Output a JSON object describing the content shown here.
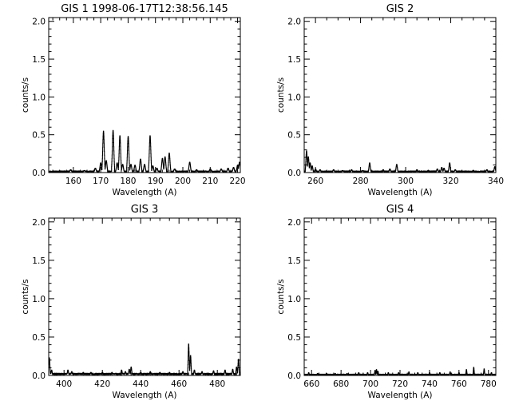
{
  "figure": {
    "colors": {
      "background": "#ffffff",
      "ink": "#000000"
    }
  },
  "chart_data": [
    {
      "type": "line",
      "title": "GIS 1 1998-06-17T12:38:56.145",
      "xlabel": "Wavelength (A)",
      "ylabel": "counts/s",
      "xlim": [
        151,
        221
      ],
      "ylim": [
        0,
        2.05
      ],
      "xticks": [
        160,
        170,
        180,
        190,
        200,
        210,
        220
      ],
      "yticks": [
        0.0,
        0.5,
        1.0,
        1.5,
        2.0
      ],
      "ytick_labels": [
        "0.0",
        "0.5",
        "1.0",
        "1.5",
        "2.0"
      ],
      "grid": false,
      "series": [
        {
          "style": "histogram",
          "baseline": 0.015,
          "lines": [
            [
              159,
              0.03
            ],
            [
              164,
              0.02
            ],
            [
              168,
              0.05
            ],
            [
              170,
              0.12
            ],
            [
              171,
              0.54
            ],
            [
              172,
              0.15
            ],
            [
              174.5,
              0.55
            ],
            [
              176,
              0.12
            ],
            [
              177,
              0.48
            ],
            [
              178,
              0.1
            ],
            [
              180,
              0.47
            ],
            [
              181,
              0.1
            ],
            [
              182.5,
              0.09
            ],
            [
              184.5,
              0.17
            ],
            [
              186,
              0.1
            ],
            [
              188,
              0.48
            ],
            [
              189,
              0.08
            ],
            [
              190.5,
              0.05
            ],
            [
              192.5,
              0.18
            ],
            [
              193.5,
              0.2
            ],
            [
              195,
              0.25
            ],
            [
              197,
              0.04
            ],
            [
              202.5,
              0.13
            ],
            [
              205,
              0.03
            ],
            [
              210,
              0.04
            ],
            [
              214,
              0.04
            ],
            [
              216.5,
              0.05
            ],
            [
              218.5,
              0.06
            ],
            [
              220,
              0.09
            ],
            [
              220.7,
              0.13
            ]
          ]
        }
      ]
    },
    {
      "type": "line",
      "title": "GIS 2",
      "xlabel": "Wavelength (A)",
      "ylabel": "counts/s",
      "xlim": [
        255,
        340
      ],
      "ylim": [
        0,
        2.05
      ],
      "xticks": [
        260,
        280,
        300,
        320,
        340
      ],
      "yticks": [
        0.0,
        0.5,
        1.0,
        1.5,
        2.0
      ],
      "ytick_labels": [
        "0.0",
        "0.5",
        "1.0",
        "1.5",
        "2.0"
      ],
      "grid": false,
      "series": [
        {
          "style": "histogram",
          "baseline": 0.015,
          "lines": [
            [
              256,
              0.28
            ],
            [
              256.8,
              0.2
            ],
            [
              257.6,
              0.12
            ],
            [
              258.5,
              0.08
            ],
            [
              260,
              0.04
            ],
            [
              262,
              0.03
            ],
            [
              268,
              0.03
            ],
            [
              272,
              0.02
            ],
            [
              276,
              0.03
            ],
            [
              281,
              0.02
            ],
            [
              284,
              0.12
            ],
            [
              290,
              0.03
            ],
            [
              293,
              0.04
            ],
            [
              296,
              0.1
            ],
            [
              305,
              0.03
            ],
            [
              310,
              0.02
            ],
            [
              314,
              0.04
            ],
            [
              316,
              0.06
            ],
            [
              317,
              0.05
            ],
            [
              319.5,
              0.12
            ],
            [
              322,
              0.03
            ],
            [
              330,
              0.02
            ],
            [
              336,
              0.03
            ],
            [
              339.5,
              0.07
            ]
          ]
        }
      ]
    },
    {
      "type": "line",
      "title": "GIS 3",
      "xlabel": "Wavelength (A)",
      "ylabel": "counts/s",
      "xlim": [
        392,
        492
      ],
      "ylim": [
        0,
        2.05
      ],
      "xticks": [
        400,
        420,
        440,
        460,
        480
      ],
      "yticks": [
        0.0,
        0.5,
        1.0,
        1.5,
        2.0
      ],
      "ytick_labels": [
        "0.0",
        "0.5",
        "1.0",
        "1.5",
        "2.0"
      ],
      "grid": false,
      "series": [
        {
          "style": "histogram",
          "baseline": 0.02,
          "lines": [
            [
              392.3,
              0.22
            ],
            [
              393.5,
              0.06
            ],
            [
              402,
              0.06
            ],
            [
              404,
              0.04
            ],
            [
              410,
              0.03
            ],
            [
              414,
              0.03
            ],
            [
              420,
              0.03
            ],
            [
              425,
              0.03
            ],
            [
              430,
              0.06
            ],
            [
              432,
              0.04
            ],
            [
              434,
              0.07
            ],
            [
              435,
              0.1
            ],
            [
              440,
              0.03
            ],
            [
              445,
              0.04
            ],
            [
              450,
              0.03
            ],
            [
              455,
              0.03
            ],
            [
              462,
              0.04
            ],
            [
              465,
              0.4
            ],
            [
              466,
              0.25
            ],
            [
              468,
              0.06
            ],
            [
              472,
              0.04
            ],
            [
              478,
              0.05
            ],
            [
              484,
              0.06
            ],
            [
              488,
              0.07
            ],
            [
              490,
              0.1
            ],
            [
              491,
              0.2
            ]
          ]
        }
      ]
    },
    {
      "type": "line",
      "title": "GIS 4",
      "xlabel": "Wavelength (A)",
      "ylabel": "counts/s",
      "xlim": [
        655,
        785
      ],
      "ylim": [
        0,
        2.05
      ],
      "xticks": [
        660,
        680,
        700,
        720,
        740,
        760,
        780
      ],
      "yticks": [
        0.0,
        0.5,
        1.0,
        1.5,
        2.0
      ],
      "ytick_labels": [
        "0.0",
        "0.5",
        "1.0",
        "1.5",
        "2.0"
      ],
      "grid": false,
      "series": [
        {
          "style": "histogram",
          "baseline": 0.012,
          "lines": [
            [
              658,
              0.03
            ],
            [
              664,
              0.02
            ],
            [
              670,
              0.02
            ],
            [
              676,
              0.02
            ],
            [
              684,
              0.02
            ],
            [
              692,
              0.03
            ],
            [
              698,
              0.03
            ],
            [
              703,
              0.06
            ],
            [
              704,
              0.07
            ],
            [
              705,
              0.05
            ],
            [
              712,
              0.03
            ],
            [
              719,
              0.03
            ],
            [
              726,
              0.04
            ],
            [
              732,
              0.03
            ],
            [
              740,
              0.03
            ],
            [
              747,
              0.03
            ],
            [
              754,
              0.04
            ],
            [
              760,
              0.03
            ],
            [
              765,
              0.07
            ],
            [
              770,
              0.1
            ],
            [
              777,
              0.08
            ],
            [
              782,
              0.03
            ]
          ]
        }
      ]
    }
  ]
}
